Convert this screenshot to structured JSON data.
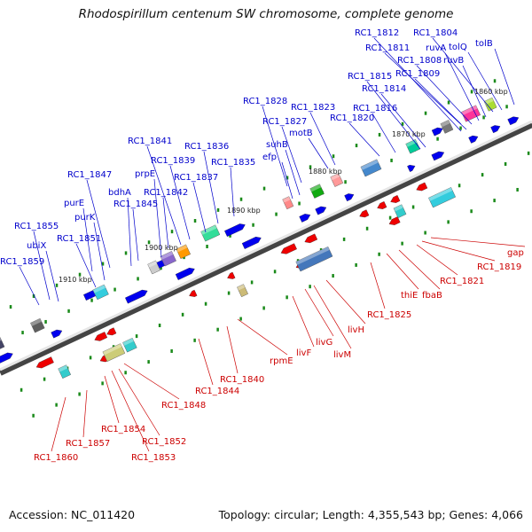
{
  "title": "Rhodospirillum centenum SW chromosome, complete genome",
  "footer": {
    "accession": "Accession: NC_011420",
    "summary": "Topology: circular; Length: 4,355,543 bp; Genes: 4,066"
  },
  "kbp_marks": [
    "1910 kbp",
    "1900 kbp",
    "1890 kbp",
    "1880 kbp",
    "1870 kbp",
    "1860 kbp"
  ],
  "labels_top": [
    "RC1_1859",
    "RC1_1855",
    "ubiX",
    "RC1_1851",
    "purK",
    "purE",
    "RC1_1847",
    "bdhA",
    "RC1_1845",
    "prpE",
    "RC1_1842",
    "RC1_1841",
    "RC1_1839",
    "RC1_1837",
    "RC1_1836",
    "RC1_1835",
    "efp",
    "suhB",
    "RC1_1828",
    "RC1_1827",
    "motB",
    "RC1_1823",
    "RC1_1820",
    "RC1_1816",
    "RC1_1815",
    "RC1_1814",
    "RC1_1812",
    "RC1_1811",
    "RC1_1809",
    "RC1_1808",
    "ruvA",
    "ruvB",
    "RC1_1804",
    "tolQ",
    "tolB"
  ],
  "labels_bottom": [
    "RC1_1860",
    "RC1_1857",
    "RC1_1854",
    "RC1_1853",
    "RC1_1852",
    "RC1_1848",
    "RC1_1844",
    "RC1_1840",
    "rpmE",
    "livF",
    "livG",
    "livM",
    "livH",
    "RC1_1825",
    "thiE",
    "fbaB",
    "RC1_1821",
    "RC1_1819",
    "gap"
  ],
  "colors": {
    "forward_label": "#0000cc",
    "reverse_label": "#cc0000",
    "forward_arrow": "#0000ee",
    "reverse_arrow": "#ee0000",
    "backbone": "#888888",
    "tick": "#1a8a1a"
  }
}
